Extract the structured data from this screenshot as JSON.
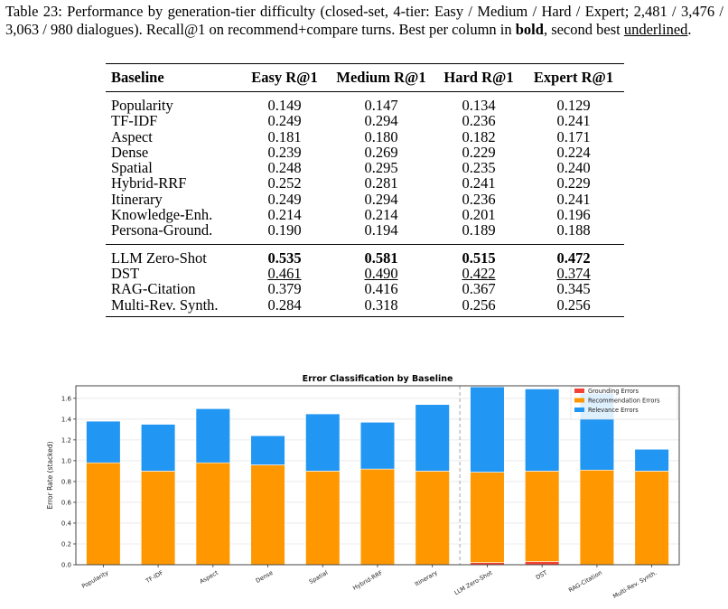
{
  "caption": {
    "label": "Table 23:",
    "text1": " Performance by generation-tier difficulty (closed-set, 4-tier: Easy / Medium / Hard / Expert; 2,481 / 3,476 / 3,063 / 980 dialogues). Recall@1 on recommend+compare turns. Best per column in ",
    "bold_word": "bold",
    "text2": ", second best ",
    "underline_word": "underlined",
    "text3": "."
  },
  "table": {
    "headers": [
      "Baseline",
      "Easy R@1",
      "Medium R@1",
      "Hard R@1",
      "Expert R@1"
    ],
    "group1": [
      {
        "name": "Popularity",
        "values": [
          "0.149",
          "0.147",
          "0.134",
          "0.129"
        ]
      },
      {
        "name": "TF-IDF",
        "values": [
          "0.249",
          "0.294",
          "0.236",
          "0.241"
        ]
      },
      {
        "name": "Aspect",
        "values": [
          "0.181",
          "0.180",
          "0.182",
          "0.171"
        ]
      },
      {
        "name": "Dense",
        "values": [
          "0.239",
          "0.269",
          "0.229",
          "0.224"
        ]
      },
      {
        "name": "Spatial",
        "values": [
          "0.248",
          "0.295",
          "0.235",
          "0.240"
        ]
      },
      {
        "name": "Hybrid-RRF",
        "values": [
          "0.252",
          "0.281",
          "0.241",
          "0.229"
        ]
      },
      {
        "name": "Itinerary",
        "values": [
          "0.249",
          "0.294",
          "0.236",
          "0.241"
        ]
      },
      {
        "name": "Knowledge-Enh.",
        "values": [
          "0.214",
          "0.214",
          "0.201",
          "0.196"
        ]
      },
      {
        "name": "Persona-Ground.",
        "values": [
          "0.190",
          "0.194",
          "0.189",
          "0.188"
        ]
      }
    ],
    "group2": [
      {
        "name": "LLM Zero-Shot",
        "values": [
          "0.535",
          "0.581",
          "0.515",
          "0.472"
        ],
        "style": "best"
      },
      {
        "name": "DST",
        "values": [
          "0.461",
          "0.490",
          "0.422",
          "0.374"
        ],
        "style": "second"
      },
      {
        "name": "RAG-Citation",
        "values": [
          "0.379",
          "0.416",
          "0.367",
          "0.345"
        ],
        "style": ""
      },
      {
        "name": "Multi-Rev. Synth.",
        "values": [
          "0.284",
          "0.318",
          "0.256",
          "0.256"
        ],
        "style": ""
      }
    ]
  },
  "chart_data": {
    "type": "bar",
    "stacked": true,
    "title": "Error Classification by Baseline",
    "xlabel": "",
    "ylabel": "Error Rate (stacked)",
    "ylim": [
      0,
      1.72
    ],
    "yticks": [
      "0.0",
      "0.2",
      "0.4",
      "0.6",
      "0.8",
      "1.0",
      "1.2",
      "1.4",
      "1.6"
    ],
    "grid": true,
    "legend_position": "top-right",
    "categories": [
      "Popularity",
      "TF-IDF",
      "Aspect",
      "Dense",
      "Spatial",
      "Hybrid-RRF",
      "Itinerary",
      "LLM Zero-Shot",
      "DST",
      "RAG-Citation",
      "Multi-Rev. Synth."
    ],
    "series": [
      {
        "name": "Grounding Errors",
        "color": "#f44336",
        "values": [
          0,
          0,
          0,
          0,
          0,
          0,
          0,
          0.02,
          0.03,
          0,
          0
        ]
      },
      {
        "name": "Recommendation Errors",
        "color": "#ff9800",
        "values": [
          0.98,
          0.9,
          0.98,
          0.96,
          0.9,
          0.92,
          0.9,
          0.87,
          0.87,
          0.91,
          0.9
        ]
      },
      {
        "name": "Relevance Errors",
        "color": "#2196f3",
        "values": [
          0.4,
          0.45,
          0.52,
          0.28,
          0.55,
          0.45,
          0.64,
          0.82,
          0.79,
          0.74,
          0.21
        ]
      }
    ],
    "separator_after_index": 6
  }
}
